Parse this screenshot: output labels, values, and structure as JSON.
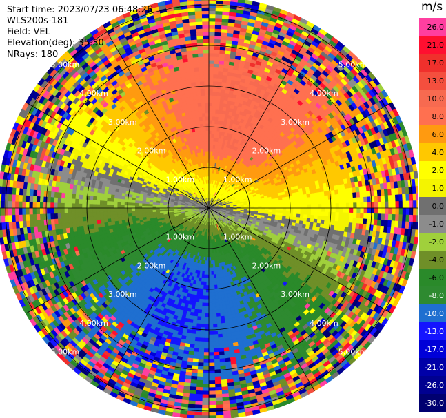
{
  "header": {
    "start_time": "Start time: 2023/07/23 06:48:26",
    "instrument": "WLS200s-181",
    "field": "Field: VEL",
    "elevation": "Elevation(deg): 35.30",
    "nrays": "NRays: 180"
  },
  "colorbar": {
    "unit": "m/s",
    "levels": [
      {
        "label": "26.0",
        "color": "#ff3fa0"
      },
      {
        "label": "21.0",
        "color": "#ff0f30"
      },
      {
        "label": "17.0",
        "color": "#f0302c"
      },
      {
        "label": "13.0",
        "color": "#f44f3e"
      },
      {
        "label": "10.0",
        "color": "#f76a50"
      },
      {
        "label": "8.0",
        "color": "#ff7050"
      },
      {
        "label": "6.0",
        "color": "#ff9a10"
      },
      {
        "label": "4.0",
        "color": "#ffc800"
      },
      {
        "label": "2.0",
        "color": "#ffff00"
      },
      {
        "label": "1.0",
        "color": "#f4f400"
      },
      {
        "label": "0.0",
        "color": "#707070"
      },
      {
        "label": "-1.0",
        "color": "#8c8c8c"
      },
      {
        "label": "-2.0",
        "color": "#a0d03c"
      },
      {
        "label": "-4.0",
        "color": "#6f8f28"
      },
      {
        "label": "-6.0",
        "color": "#2a8a2a"
      },
      {
        "label": "-8.0",
        "color": "#2e8a30"
      },
      {
        "label": "-10.0",
        "color": "#1f6fd0"
      },
      {
        "label": "-13.0",
        "color": "#1414ff"
      },
      {
        "label": "-17.0",
        "color": "#0000d8"
      },
      {
        "label": "-21.0",
        "color": "#0000a8"
      },
      {
        "label": "-26.0",
        "color": "#000090"
      },
      {
        "label": "-30.0",
        "color": "#000070"
      }
    ]
  },
  "chart_data": {
    "type": "heatmap",
    "projection": "polar",
    "field": "VEL",
    "units": "m/s",
    "range_rings_km": [
      {
        "value": 1.0,
        "label": "1.00km"
      },
      {
        "value": 2.0,
        "label": "2.00km"
      },
      {
        "value": 3.0,
        "label": "3.00km"
      },
      {
        "value": 4.0,
        "label": "4.00km"
      },
      {
        "value": 5.0,
        "label": "5.00km"
      }
    ],
    "max_range_km": 5.2,
    "azimuth_lines_deg": [
      0,
      30,
      60,
      90,
      120,
      150,
      180,
      210,
      240,
      270,
      300,
      330
    ],
    "ring_label_azimuths_deg": [
      45,
      135,
      225,
      315
    ],
    "wind_pattern": {
      "positive_lobe_azimuth_deg": 0,
      "negative_lobe_azimuth_deg": 180,
      "peak_positive_ms": 10.0,
      "peak_negative_ms": -10.0,
      "noise_onset_km": 3.4
    }
  }
}
